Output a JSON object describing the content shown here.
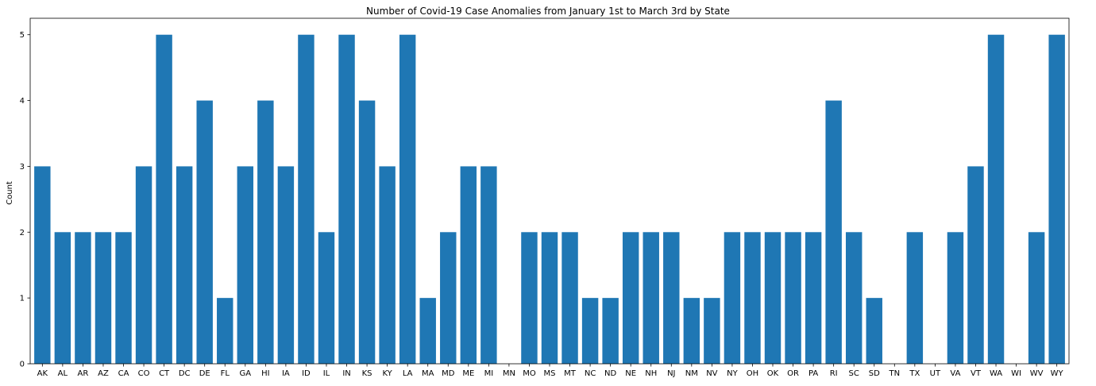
{
  "chart_data": {
    "type": "bar",
    "title": "Number of Covid-19 Case Anomalies from January 1st to March 3rd by State",
    "xlabel": "",
    "ylabel": "Count",
    "ylim": [
      0,
      5.25
    ],
    "yticks": [
      0,
      1,
      2,
      3,
      4,
      5
    ],
    "grid": false,
    "bar_color": "#1f77b4",
    "categories": [
      "AK",
      "AL",
      "AR",
      "AZ",
      "CA",
      "CO",
      "CT",
      "DC",
      "DE",
      "FL",
      "GA",
      "HI",
      "IA",
      "ID",
      "IL",
      "IN",
      "KS",
      "KY",
      "LA",
      "MA",
      "MD",
      "ME",
      "MI",
      "MN",
      "MO",
      "MS",
      "MT",
      "NC",
      "ND",
      "NE",
      "NH",
      "NJ",
      "NM",
      "NV",
      "NY",
      "OH",
      "OK",
      "OR",
      "PA",
      "RI",
      "SC",
      "SD",
      "TN",
      "TX",
      "UT",
      "VA",
      "VT",
      "WA",
      "WI",
      "WV",
      "WY"
    ],
    "values": [
      3,
      2,
      2,
      2,
      2,
      3,
      5,
      3,
      4,
      1,
      3,
      4,
      3,
      5,
      2,
      5,
      4,
      3,
      5,
      1,
      2,
      3,
      3,
      0,
      2,
      2,
      2,
      1,
      1,
      2,
      2,
      2,
      1,
      1,
      2,
      2,
      2,
      2,
      2,
      4,
      2,
      1,
      0,
      2,
      0,
      2,
      3,
      5,
      0,
      2,
      5
    ]
  }
}
